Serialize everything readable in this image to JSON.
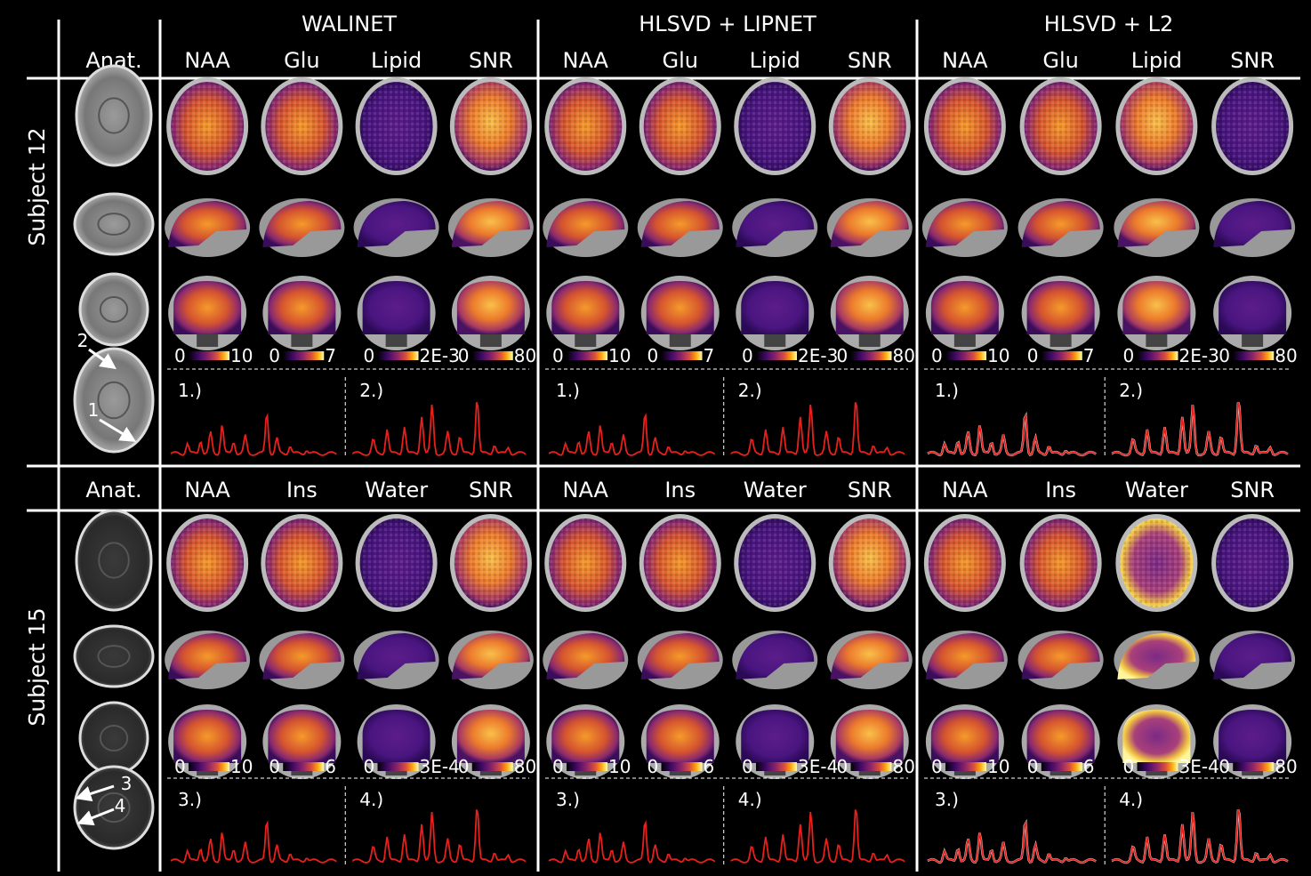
{
  "methods": [
    "WALINET",
    "HLSVD + LIPNET",
    "HLSVD + L2"
  ],
  "anat_label": "Anat.",
  "colors": {
    "spectrum": "#e8201c",
    "fit": "#ffffff",
    "bg": "#000000"
  },
  "subjects": [
    {
      "label": "Subject 12",
      "metabolites": [
        "NAA",
        "Glu",
        "Lipid",
        "SNR"
      ],
      "scales": [
        [
          "0",
          "10"
        ],
        [
          "0",
          "7"
        ],
        [
          "0",
          "2E-3"
        ],
        [
          "0",
          "80"
        ]
      ],
      "spectrum_labels": [
        "1.)",
        "2.)"
      ],
      "arrow_labels": [
        "2",
        "1"
      ],
      "anat_tone": "t1"
    },
    {
      "label": "Subject 15",
      "metabolites": [
        "NAA",
        "Ins",
        "Water",
        "SNR"
      ],
      "scales": [
        [
          "0",
          "10"
        ],
        [
          "0",
          "6"
        ],
        [
          "0",
          "3E-4"
        ],
        [
          "0",
          "80"
        ]
      ],
      "spectrum_labels": [
        "3.)",
        "4.)"
      ],
      "arrow_labels": [
        "3",
        "4"
      ],
      "anat_tone": "dark"
    }
  ]
}
